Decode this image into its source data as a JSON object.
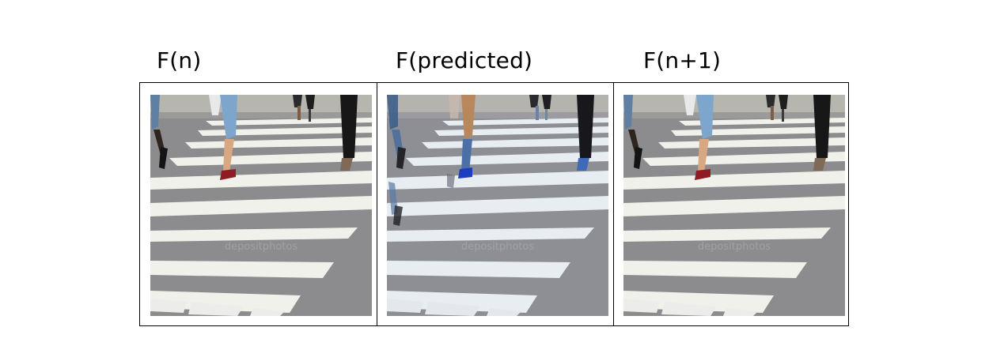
{
  "figure": {
    "frames": [
      {
        "id": "frame-n",
        "caption": "F(n)",
        "watermark": "depositphotos"
      },
      {
        "id": "frame-predicted",
        "caption": "F(predicted)",
        "watermark": "depositphotos"
      },
      {
        "id": "frame-n-plus-1",
        "caption": "F(n+1)",
        "watermark": "depositphotos"
      }
    ]
  }
}
